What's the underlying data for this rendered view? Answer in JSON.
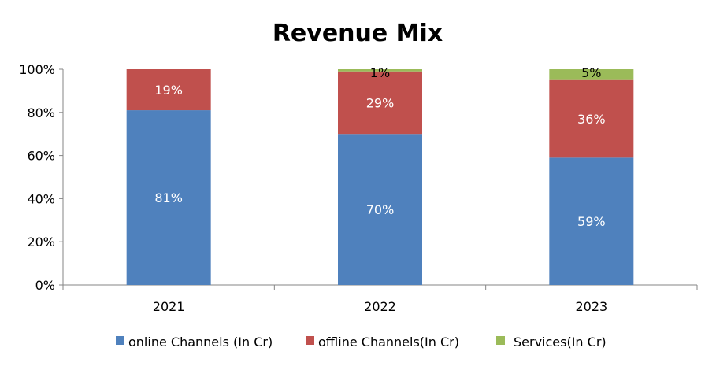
{
  "chart_data": {
    "type": "bar",
    "stacked": true,
    "percent": true,
    "title": "Revenue Mix",
    "xlabel": "",
    "ylabel": "",
    "categories": [
      "2021",
      "2022",
      "2023"
    ],
    "ylim": [
      0,
      100
    ],
    "yticks": [
      "0%",
      "20%",
      "40%",
      "60%",
      "80%",
      "100%"
    ],
    "grid": false,
    "legend_position": "bottom",
    "series": [
      {
        "name": "online Channels (In Cr)",
        "values": [
          81,
          70,
          59
        ],
        "labels": [
          "81%",
          "70%",
          "59%"
        ],
        "color": "#4F81BD",
        "label_color": "#FFFFFF"
      },
      {
        "name": "offline Channels(In Cr)",
        "values": [
          19,
          29,
          36
        ],
        "labels": [
          "19%",
          "29%",
          "36%"
        ],
        "color": "#C0504D",
        "label_color": "#FFFFFF"
      },
      {
        "name": "Services(In Cr)",
        "values": [
          0,
          1,
          5
        ],
        "labels": [
          "",
          "1%",
          "5%"
        ],
        "color": "#9BBB59",
        "label_color": "#000000"
      }
    ]
  }
}
